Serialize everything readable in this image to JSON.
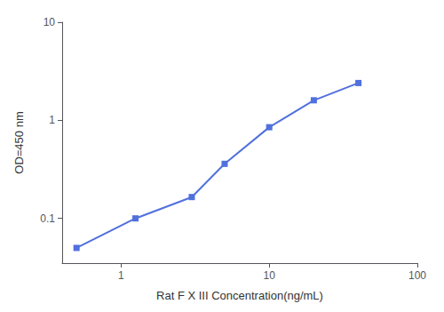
{
  "chart_data": {
    "type": "line",
    "x": [
      0.5,
      1.25,
      3.0,
      5.0,
      10.0,
      20.0,
      40.0
    ],
    "values": [
      0.05,
      0.1,
      0.165,
      0.36,
      0.85,
      1.6,
      2.4
    ],
    "xlabel": "Rat F X III Concentration(ng/mL)",
    "ylabel": "OD=450 nm",
    "xlim": [
      0.4,
      100
    ],
    "ylim": [
      0.035,
      10
    ],
    "xticks": [
      1,
      10,
      100
    ],
    "yticks": [
      0.1,
      1,
      10
    ],
    "log": true,
    "grid": false,
    "marker": "square"
  }
}
